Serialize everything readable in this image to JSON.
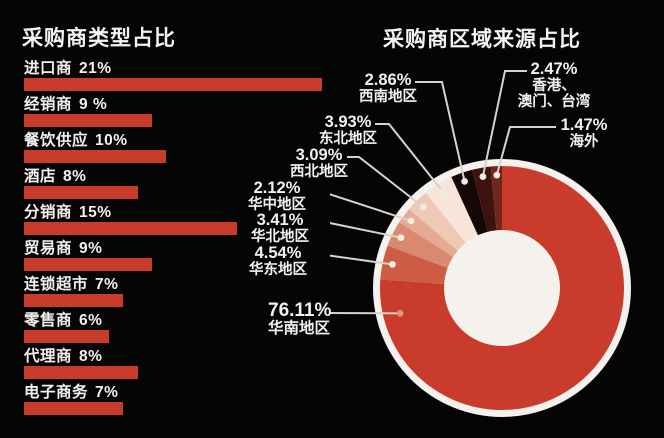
{
  "page": {
    "background_color": "#060505",
    "text_color": "#f3f1ee"
  },
  "chart_data": [
    {
      "type": "bar",
      "orientation": "horizontal",
      "title": "采购商类型占比",
      "categories": [
        "进口商",
        "经销商",
        "餐饮供应",
        "酒店",
        "分销商",
        "贸易商",
        "连锁超市",
        "零售商",
        "代理商",
        "电子商务"
      ],
      "values": [
        21,
        9,
        10,
        8,
        15,
        9,
        7,
        6,
        8,
        7
      ],
      "value_labels": [
        "21%",
        "9 %",
        "10%",
        "8%",
        "15%",
        "9%",
        "7%",
        "6%",
        "8%",
        "7%"
      ],
      "unit": "%",
      "xlim": [
        0,
        21
      ],
      "bar_color": "#c93b2b",
      "grid": false,
      "legend": "none"
    },
    {
      "type": "pie",
      "subtype": "donut",
      "title": "采购商区域来源占比",
      "start_angle_deg_from_top": 0,
      "direction": "clockwise",
      "ring_color": "#f5f1ec",
      "leader_line_color": "#d9d2cb",
      "highlight_dot_color": "#dd9a72",
      "slices": [
        {
          "name": "华南地区",
          "value": 76.11,
          "pct_label": "76.11%",
          "color": "#c93b2b"
        },
        {
          "name": "华东地区",
          "value": 4.54,
          "pct_label": "4.54%",
          "color": "#cd5c45"
        },
        {
          "name": "华北地区",
          "value": 3.41,
          "pct_label": "3.41%",
          "color": "#da8971"
        },
        {
          "name": "华中地区",
          "value": 2.12,
          "pct_label": "2.12%",
          "color": "#e6a992"
        },
        {
          "name": "西北地区",
          "value": 3.09,
          "pct_label": "3.09%",
          "color": "#f0c8b6"
        },
        {
          "name": "东北地区",
          "value": 3.93,
          "pct_label": "3.93%",
          "color": "#f8e5da"
        },
        {
          "name": "西南地区",
          "value": 2.86,
          "pct_label": "2.86%",
          "color": "#140808"
        },
        {
          "name": "香港、澳门、台湾",
          "name_lines": [
            "香港、",
            "澳门、台湾"
          ],
          "value": 2.47,
          "pct_label": "2.47%",
          "color": "#40120f"
        },
        {
          "name": "海外",
          "value": 1.47,
          "pct_label": "1.47%",
          "color": "#70261c"
        }
      ]
    }
  ]
}
